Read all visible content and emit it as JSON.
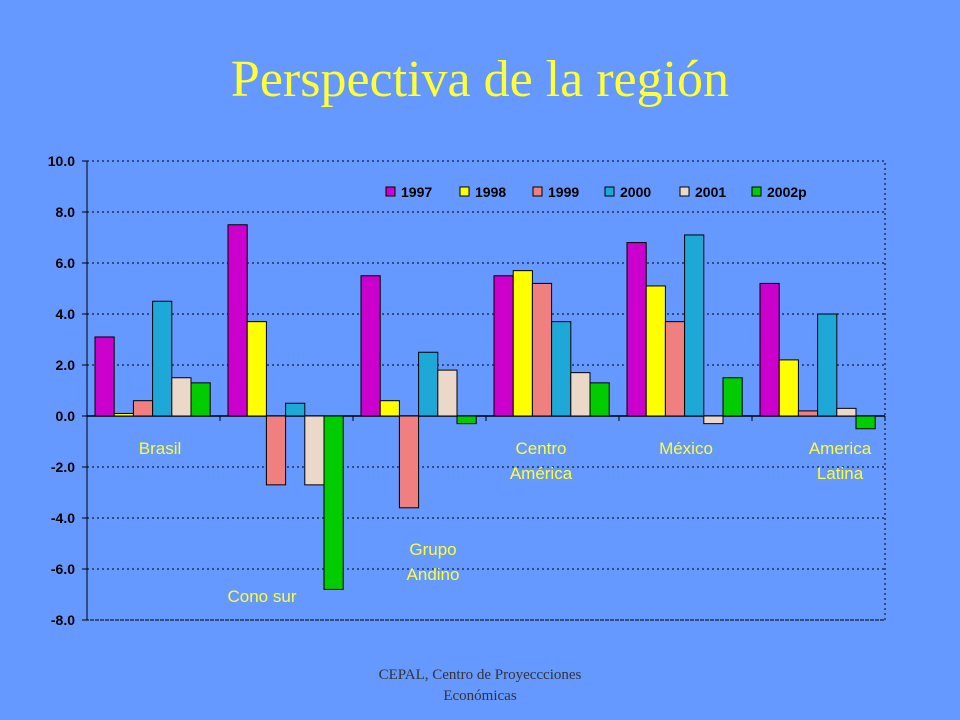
{
  "title": "Perspectiva de la región",
  "footer": {
    "line1": "CEPAL, Centro de Proyeccciones",
    "line2": "Económicas"
  },
  "chart_data": {
    "type": "bar",
    "ylim": [
      -8,
      10
    ],
    "yticks": [
      "10.0",
      "8.0",
      "6.0",
      "4.0",
      "2.0",
      "0.0",
      "-2.0",
      "-4.0",
      "-6.0",
      "-8.0"
    ],
    "grid": true,
    "legend_position": "top-right",
    "categories": [
      [
        "Brasil"
      ],
      [
        "Cono sur"
      ],
      [
        "Grupo",
        "Andino"
      ],
      [
        "Centro",
        "América"
      ],
      [
        "México"
      ],
      [
        "America",
        "Latina"
      ]
    ],
    "series": [
      {
        "name": "1997",
        "color": "#CC00CC",
        "values": [
          3.1,
          7.5,
          5.5,
          5.5,
          6.8,
          5.2
        ]
      },
      {
        "name": "1998",
        "color": "#FFFF00",
        "values": [
          0.1,
          3.7,
          0.6,
          5.7,
          5.1,
          2.2
        ]
      },
      {
        "name": "1999",
        "color": "#F08080",
        "values": [
          0.6,
          -2.7,
          -3.6,
          5.2,
          3.7,
          0.2
        ]
      },
      {
        "name": "2000",
        "color": "#1EA8D8",
        "values": [
          4.5,
          0.5,
          2.5,
          3.7,
          7.1,
          4.0
        ]
      },
      {
        "name": "2001",
        "color": "#EBD8C8",
        "values": [
          1.5,
          -2.7,
          1.8,
          1.7,
          -0.3,
          0.3
        ]
      },
      {
        "name": "2002p",
        "color": "#00CC00",
        "values": [
          1.3,
          -6.8,
          -0.3,
          1.3,
          1.5,
          -0.5
        ]
      }
    ],
    "text_color": "#FFFF33"
  }
}
